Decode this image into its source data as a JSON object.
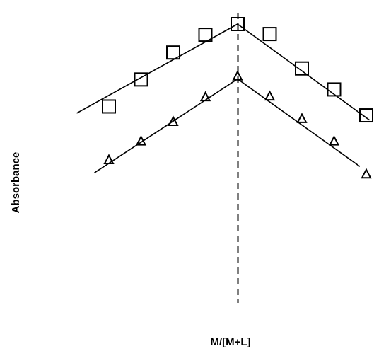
{
  "chart_data": {
    "type": "scatter",
    "xlabel": "M/[M+L]",
    "ylabel": "Absorbance",
    "xlim": [
      0,
      1
    ],
    "ylim": [
      0,
      1
    ],
    "grid": false,
    "legend": "none",
    "vertical_reference_line": {
      "x": 0.5,
      "style": "dashed"
    },
    "series": [
      {
        "marker": "square",
        "points": [
          {
            "x": 0.1,
            "y": 0.545
          },
          {
            "x": 0.2,
            "y": 0.694
          },
          {
            "x": 0.3,
            "y": 0.843
          },
          {
            "x": 0.4,
            "y": 0.941
          },
          {
            "x": 0.5,
            "y": 1.0
          },
          {
            "x": 0.6,
            "y": 0.945
          },
          {
            "x": 0.7,
            "y": 0.755
          },
          {
            "x": 0.8,
            "y": 0.639
          },
          {
            "x": 0.9,
            "y": 0.496
          }
        ],
        "fit_lines": [
          {
            "from": {
              "x": 0.0,
              "y": 0.508
            },
            "to": {
              "x": 0.5,
              "y": 1.0
            }
          },
          {
            "from": {
              "x": 0.5,
              "y": 1.0
            },
            "to": {
              "x": 0.91,
              "y": 0.47
            }
          }
        ]
      },
      {
        "marker": "triangle",
        "points": [
          {
            "x": 0.1,
            "y": 0.25
          },
          {
            "x": 0.2,
            "y": 0.353
          },
          {
            "x": 0.3,
            "y": 0.461
          },
          {
            "x": 0.4,
            "y": 0.597
          },
          {
            "x": 0.5,
            "y": 0.712
          },
          {
            "x": 0.6,
            "y": 0.601
          },
          {
            "x": 0.7,
            "y": 0.477
          },
          {
            "x": 0.8,
            "y": 0.353
          },
          {
            "x": 0.9,
            "y": 0.171
          }
        ],
        "fit_lines": [
          {
            "from": {
              "x": 0.055,
              "y": 0.179
            },
            "to": {
              "x": 0.5,
              "y": 0.697
            }
          },
          {
            "from": {
              "x": 0.5,
              "y": 0.697
            },
            "to": {
              "x": 0.88,
              "y": 0.214
            }
          }
        ]
      }
    ]
  },
  "colors": {
    "foreground": "#000000",
    "background": "#ffffff"
  }
}
